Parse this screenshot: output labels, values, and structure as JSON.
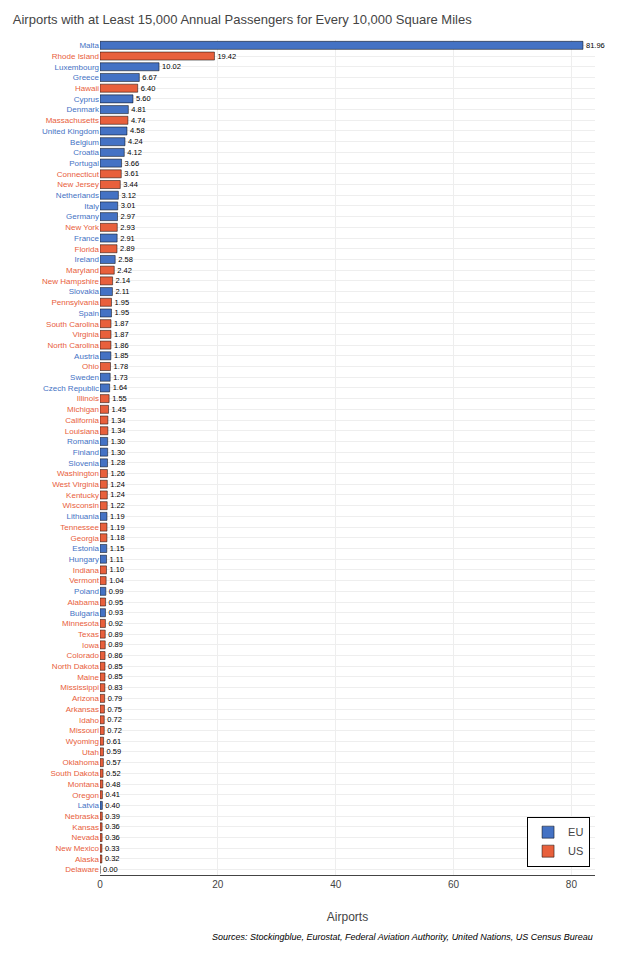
{
  "chart_data": {
    "type": "bar",
    "orientation": "horizontal",
    "title": "Airports with at Least 15,000 Annual Passengers for Every 10,000 Square Miles",
    "xlabel": "Airports",
    "annotations": [
      "Sources: Stockingblue, Eurostat, Federal Aviation Authority, United Nations, US Census Bureau"
    ],
    "categories": [
      "Malta",
      "Rhode Island",
      "Luxembourg",
      "Greece",
      "Hawaii",
      "Cyprus",
      "Denmark",
      "Massachusetts",
      "United Kingdom",
      "Belgium",
      "Croatia",
      "Portugal",
      "Connecticut",
      "New Jersey",
      "Netherlands",
      "Italy",
      "Germany",
      "New York",
      "France",
      "Florida",
      "Ireland",
      "Maryland",
      "New Hampshire",
      "Slovakia",
      "Pennsylvania",
      "Spain",
      "South Carolina",
      "Virginia",
      "North Carolina",
      "Austria",
      "Ohio",
      "Sweden",
      "Czech Republic",
      "Illinois",
      "Michigan",
      "California",
      "Louisiana",
      "Romania",
      "Finland",
      "Slovenia",
      "Washington",
      "West Virginia",
      "Kentucky",
      "Wisconsin",
      "Lithuania",
      "Tennessee",
      "Georgia",
      "Estonia",
      "Hungary",
      "Indiana",
      "Vermont",
      "Poland",
      "Alabama",
      "Bulgaria",
      "Minnesota",
      "Texas",
      "Iowa",
      "Colorado",
      "North Dakota",
      "Maine",
      "Mississippi",
      "Arizona",
      "Arkansas",
      "Idaho",
      "Missouri",
      "Wyoming",
      "Utah",
      "Oklahoma",
      "South Dakota",
      "Montana",
      "Oregon",
      "Latvia",
      "Nebraska",
      "Kansas",
      "Nevada",
      "New Mexico",
      "Alaska",
      "Delaware"
    ],
    "series": [
      {
        "name": "EU",
        "color": "#4472C4",
        "values": [
          81.96,
          null,
          10.02,
          6.67,
          null,
          5.6,
          4.81,
          null,
          4.58,
          4.24,
          4.12,
          3.66,
          null,
          null,
          3.12,
          3.01,
          2.97,
          null,
          2.91,
          null,
          2.58,
          null,
          null,
          2.11,
          null,
          1.95,
          null,
          null,
          null,
          1.85,
          null,
          1.73,
          1.64,
          null,
          null,
          null,
          null,
          1.3,
          1.3,
          1.28,
          null,
          null,
          null,
          null,
          1.19,
          null,
          null,
          1.15,
          1.11,
          null,
          null,
          0.99,
          null,
          0.93,
          null,
          null,
          null,
          null,
          null,
          null,
          null,
          null,
          null,
          null,
          null,
          null,
          null,
          null,
          null,
          null,
          null,
          0.4,
          null,
          null,
          null,
          null,
          null,
          null
        ],
        "value_labels": [
          "81.96",
          null,
          "10.02",
          "6.67",
          null,
          "5.60",
          "4.81",
          null,
          "4.58",
          "4.24",
          "4.12",
          "3.66",
          null,
          null,
          "3.12",
          "3.01",
          "2.97",
          null,
          "2.91",
          null,
          "2.58",
          null,
          null,
          "2.11",
          null,
          "1.95",
          null,
          null,
          null,
          "1.85",
          null,
          "1.73",
          "1.64",
          null,
          null,
          null,
          null,
          "1.30",
          "1.30",
          "1.28",
          null,
          null,
          null,
          null,
          "1.19",
          null,
          null,
          "1.15",
          "1.11",
          null,
          null,
          "0.99",
          null,
          "0.93",
          null,
          null,
          null,
          null,
          null,
          null,
          null,
          null,
          null,
          null,
          null,
          null,
          null,
          null,
          null,
          null,
          null,
          "0.40",
          null,
          null,
          null,
          null,
          null,
          null
        ]
      },
      {
        "name": "US",
        "color": "#E8603C",
        "values": [
          null,
          19.42,
          null,
          null,
          6.4,
          null,
          null,
          4.74,
          null,
          null,
          null,
          null,
          3.61,
          3.44,
          null,
          null,
          null,
          2.93,
          null,
          2.89,
          null,
          2.42,
          2.14,
          null,
          1.95,
          null,
          1.87,
          1.87,
          1.86,
          null,
          1.78,
          null,
          null,
          1.55,
          1.45,
          1.34,
          1.34,
          null,
          null,
          null,
          1.26,
          1.24,
          1.24,
          1.22,
          null,
          1.19,
          1.18,
          null,
          null,
          1.1,
          1.04,
          null,
          0.95,
          null,
          0.92,
          0.89,
          0.89,
          0.86,
          0.85,
          0.85,
          0.83,
          0.79,
          0.75,
          0.72,
          0.72,
          0.61,
          0.59,
          0.57,
          0.52,
          0.48,
          0.41,
          null,
          0.39,
          0.36,
          0.36,
          0.33,
          0.32,
          0.0
        ],
        "value_labels": [
          null,
          "19.42",
          null,
          null,
          "6.40",
          null,
          null,
          "4.74",
          null,
          null,
          null,
          null,
          "3.61",
          "3.44",
          null,
          null,
          null,
          "2.93",
          null,
          "2.89",
          null,
          "2.42",
          "2.14",
          null,
          "1.95",
          null,
          "1.87",
          "1.87",
          "1.86",
          null,
          "1.78",
          null,
          null,
          "1.55",
          "1.45",
          "1.34",
          "1.34",
          null,
          null,
          null,
          "1.26",
          "1.24",
          "1.24",
          "1.22",
          null,
          "1.19",
          "1.18",
          null,
          null,
          "1.10",
          "1.04",
          null,
          "0.95",
          null,
          "0.92",
          "0.89",
          "0.89",
          "0.86",
          "0.85",
          "0.85",
          "0.83",
          "0.79",
          "0.75",
          "0.72",
          "0.72",
          "0.61",
          "0.59",
          "0.57",
          "0.52",
          "0.48",
          "0.41",
          null,
          "0.39",
          "0.36",
          "0.36",
          "0.33",
          "0.32",
          "0.00"
        ]
      }
    ],
    "xlim": [
      0,
      84
    ],
    "xticks": [
      0,
      20,
      40,
      60,
      80
    ],
    "grid": true,
    "legend": "lower right",
    "data_labels": true
  }
}
